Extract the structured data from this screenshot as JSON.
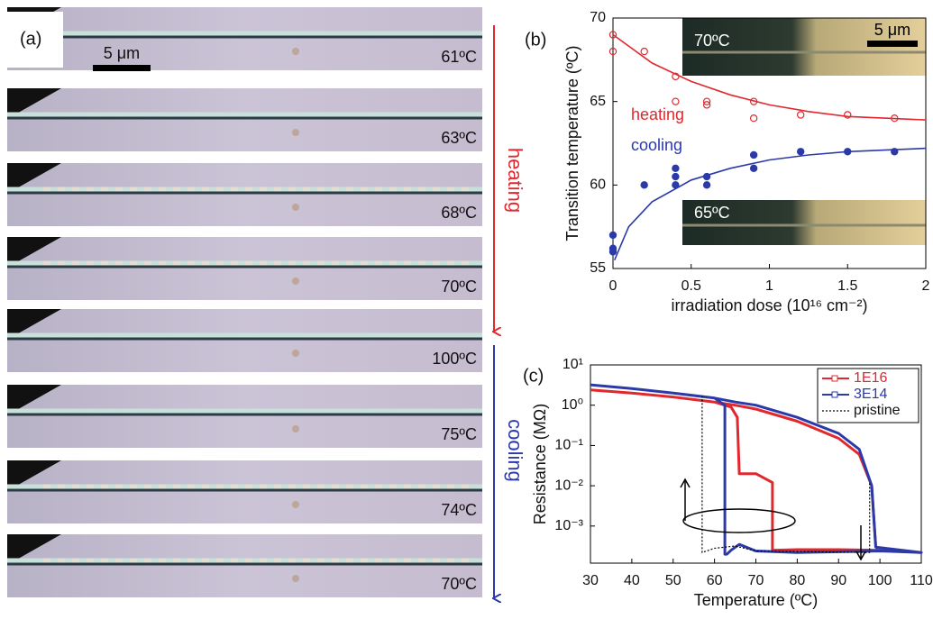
{
  "panel_a": {
    "label": "(a)",
    "scale_label": "5 μm",
    "frames": [
      "61ºC",
      "63ºC",
      "68ºC",
      "70ºC",
      "100ºC",
      "75ºC",
      "74ºC",
      "70ºC"
    ],
    "heating_label": "heating",
    "cooling_label": "cooling"
  },
  "chart_data": [
    {
      "type": "scatter",
      "panel_label": "(b)",
      "y_label": "Transition temperature (ºC)",
      "x_label": "irradiation dose (10¹⁶ cm⁻²)",
      "xlim": [
        0,
        2
      ],
      "xticks": [
        0,
        0.5,
        1,
        1.5,
        2
      ],
      "ylim": [
        55,
        70
      ],
      "yticks": [
        55,
        60,
        65,
        70
      ],
      "annotations": [
        "heating",
        "cooling"
      ],
      "annotation_colors": [
        "#e0282e",
        "#2b3aa8"
      ],
      "inset_labels": [
        "70ºC",
        "65ºC"
      ],
      "inset_scale_label": "5 μm",
      "series": [
        {
          "color": "#e0282e",
          "filled": false,
          "x": [
            0,
            0,
            0.2,
            0.4,
            0.4,
            0.6,
            0.6,
            0.9,
            0.9,
            1.2,
            1.5,
            1.8
          ],
          "values": [
            69,
            68,
            68,
            65,
            66.5,
            64.8,
            65,
            64,
            65,
            64.2,
            64.2,
            64
          ]
        },
        {
          "color": "#2b3aa8",
          "filled": true,
          "x": [
            0,
            0,
            0,
            0.2,
            0.4,
            0.4,
            0.4,
            0.6,
            0.6,
            0.9,
            0.9,
            1.2,
            1.5,
            1.8
          ],
          "values": [
            56,
            57,
            56.2,
            60,
            60,
            60.5,
            61,
            60,
            60.5,
            61,
            61.8,
            62,
            62,
            62
          ]
        }
      ],
      "fits": [
        {
          "color": "#e0282e",
          "x": [
            0,
            0.25,
            0.5,
            0.75,
            1,
            1.25,
            1.5,
            1.75,
            2
          ],
          "values": [
            69,
            67.3,
            66.2,
            65.4,
            64.8,
            64.4,
            64.1,
            64,
            63.9
          ]
        },
        {
          "color": "#2b3aa8",
          "x": [
            0.01,
            0.1,
            0.25,
            0.5,
            0.75,
            1,
            1.25,
            1.5,
            1.75,
            2
          ],
          "values": [
            55.5,
            57.5,
            59,
            60.3,
            61,
            61.5,
            61.8,
            62,
            62.1,
            62.2
          ]
        }
      ]
    },
    {
      "type": "line",
      "panel_label": "(c)",
      "y_label": "Resistance (MΩ)",
      "x_label": "Temperature (ºC)",
      "log_y": true,
      "legend": "upper right",
      "xlim": [
        30,
        110
      ],
      "xticks": [
        30,
        40,
        50,
        60,
        70,
        80,
        90,
        100,
        110
      ],
      "ylim": [
        0.00012,
        10
      ],
      "yticks": [
        {
          "value": 10,
          "label": "10¹"
        },
        {
          "value": 1,
          "label": "10⁰"
        },
        {
          "value": 0.1,
          "label": "10⁻¹"
        },
        {
          "value": 0.01,
          "label": "10⁻²"
        },
        {
          "value": 0.001,
          "label": "10⁻³"
        }
      ],
      "series": [
        {
          "name": "1E16",
          "color": "#e0282e",
          "dash": false,
          "x": [
            30,
            40,
            50,
            60,
            65,
            70,
            80,
            90,
            95,
            98,
            99,
            100,
            110,
            110,
            100,
            90,
            80,
            74,
            74,
            70,
            66,
            65.5,
            64,
            60,
            50,
            40,
            30
          ],
          "values": [
            2.4,
            2.0,
            1.6,
            1.2,
            1.0,
            0.8,
            0.4,
            0.15,
            0.06,
            0.01,
            0.0003,
            0.00025,
            0.00022,
            0.00022,
            0.00025,
            0.00026,
            0.00026,
            0.00025,
            0.012,
            0.02,
            0.02,
            0.5,
            0.9,
            1.2,
            1.6,
            2.0,
            2.4
          ]
        },
        {
          "name": "3E14",
          "color": "#2b3aa8",
          "dash": false,
          "x": [
            30,
            40,
            50,
            60,
            65,
            70,
            80,
            90,
            95,
            98,
            99,
            110,
            110,
            100,
            90,
            80,
            70,
            66,
            64,
            63,
            62.5,
            62.5,
            60,
            50,
            40,
            30
          ],
          "values": [
            3.2,
            2.6,
            2.0,
            1.5,
            1.2,
            1.0,
            0.5,
            0.2,
            0.08,
            0.01,
            0.0003,
            0.00022,
            0.00022,
            0.00024,
            0.00023,
            0.00022,
            0.00024,
            0.00035,
            0.00025,
            0.0002,
            0.0002,
            1.0,
            1.5,
            2.0,
            2.6,
            3.2
          ]
        },
        {
          "name": "pristine",
          "color": "#000000",
          "dash": true,
          "x": [
            57,
            57,
            60,
            65,
            70,
            97.5,
            97.5
          ],
          "values": [
            1.7,
            0.00022,
            0.00028,
            0.00032,
            0.00024,
            0.00022,
            0.012
          ]
        }
      ]
    }
  ]
}
